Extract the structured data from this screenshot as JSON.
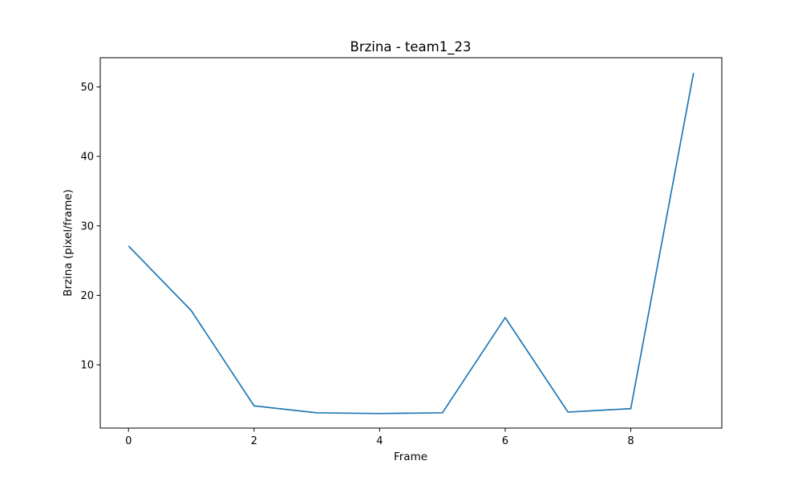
{
  "chart_data": {
    "type": "line",
    "title": "Brzina - team1_23",
    "xlabel": "Frame",
    "ylabel": "Brzina (pixel/frame)",
    "xlim": [
      -0.45,
      9.45
    ],
    "ylim": [
      0.9,
      54.2
    ],
    "xticks": [
      0,
      2,
      4,
      6,
      8
    ],
    "yticks": [
      10,
      20,
      30,
      40,
      50
    ],
    "grid": false,
    "line_color": "#1f77b4",
    "series": [
      {
        "x": [
          0,
          1,
          2,
          3,
          4,
          5,
          6,
          7,
          8,
          9
        ],
        "y": [
          27.1,
          17.8,
          4.1,
          3.1,
          3.0,
          3.1,
          16.8,
          3.2,
          3.7,
          52.0
        ]
      }
    ]
  }
}
